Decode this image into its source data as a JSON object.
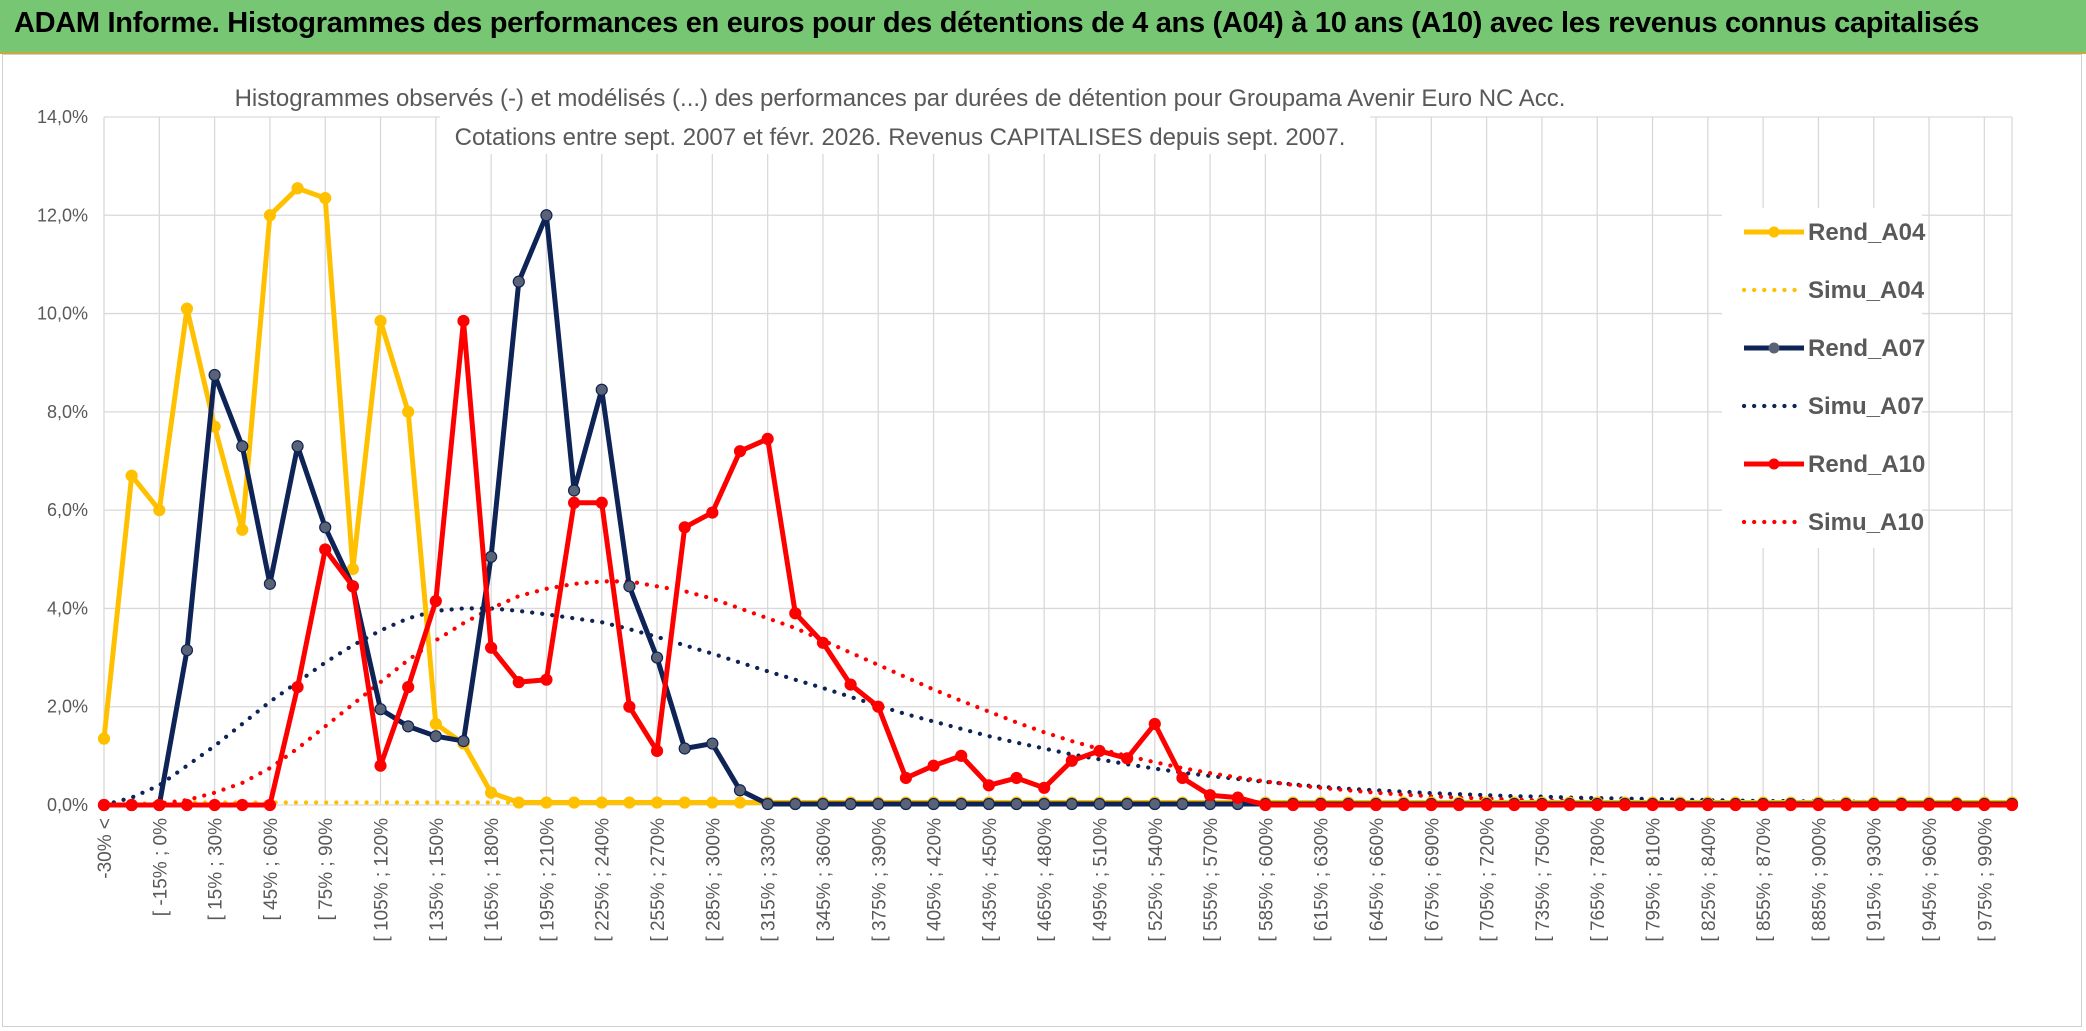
{
  "banner": {
    "title": "ADAM Informe. Histogrammes des performances en euros pour des détentions de 4 ans (A04) à 10 ans (A10) avec les revenus connus capitalisés"
  },
  "colors": {
    "A04": "#ffc000",
    "A07": "#0e2356",
    "A10": "#ff0000",
    "banner_bg": "#77c674",
    "grid": "#d9d9d9",
    "text": "#595959"
  },
  "chart_data": {
    "type": "line",
    "title_lines": [
      "Histogrammes observés (-) et modélisés (...) des performances par durées de détention pour Groupama Avenir Euro NC Acc.",
      "Cotations entre sept. 2007 et févr. 2026. Revenus CAPITALISES depuis sept. 2007."
    ],
    "xlabel": "",
    "ylabel": "",
    "ylim": [
      0,
      14
    ],
    "yticks": [
      0,
      2,
      4,
      6,
      8,
      10,
      12,
      14
    ],
    "ytick_labels": [
      "0,0%",
      "2,0%",
      "4,0%",
      "6,0%",
      "8,0%",
      "10,0%",
      "12,0%",
      "14,0%"
    ],
    "grid": true,
    "legend_position": "right",
    "x_labels": [
      "-30% <",
      "[ -15% ; 0%",
      "[ 15% ; 30%",
      "[ 45% ; 60%",
      "[ 75% ; 90%",
      "[ 105% ; 120%",
      "[ 135% ; 150%",
      "[ 165% ; 180%",
      "[ 195% ; 210%",
      "[ 225% ; 240%",
      "[ 255% ; 270%",
      "[ 285% ; 300%",
      "[ 315% ; 330%",
      "[ 345% ; 360%",
      "[ 375% ; 390%",
      "[ 405% ; 420%",
      "[ 435% ; 450%",
      "[ 465% ; 480%",
      "[ 495% ; 510%",
      "[ 525% ; 540%",
      "[ 555% ; 570%",
      "[ 585% ; 600%",
      "[ 615% ; 630%",
      "[ 645% ; 660%",
      "[ 675% ; 690%",
      "[ 705% ; 720%",
      "[ 735% ; 750%",
      "[ 765% ; 780%",
      "[ 795% ; 810%",
      "[ 825% ; 840%",
      "[ 855% ; 870%",
      "[ 885% ; 900%",
      "[ 915% ; 930%",
      "[ 945% ; 960%",
      "[ 975% ; 990%"
    ],
    "num_points": 70,
    "series": [
      {
        "name": "Rend_A04",
        "style": "solid",
        "markers": true,
        "color_key": "A04",
        "values": [
          1.35,
          6.7,
          6.0,
          10.1,
          7.7,
          5.6,
          12.0,
          12.55,
          12.35,
          4.8,
          9.85,
          8.0,
          1.65,
          1.25,
          0.25,
          0.05,
          0.05,
          0.05,
          0.05,
          0.05,
          0.05,
          0.05,
          0.05,
          0.05,
          0.05,
          0.05,
          0.05,
          0.05,
          0.05,
          0.05,
          0.05,
          0.05,
          0.05,
          0.05,
          0.05,
          0.05,
          0.05,
          0.05,
          0.05,
          0.05,
          0.05,
          0.05,
          0.05,
          0.05,
          0.05,
          0.05,
          0.05,
          0.05,
          0.05,
          0.05,
          0.05,
          0.05,
          0.05,
          0.05,
          0.05,
          0.05,
          0.05,
          0.05,
          0.05,
          0.05,
          0.05,
          0.05,
          0.05,
          0.05,
          0.05,
          0.05,
          0.05,
          0.05,
          0.05,
          0.05
        ]
      },
      {
        "name": "Simu_A04",
        "style": "dotted",
        "markers": false,
        "color_key": "A04",
        "values": [
          0.0,
          0.02,
          0.04,
          0.05,
          0.05,
          0.05,
          0.05,
          0.05,
          0.05,
          0.05,
          0.05,
          0.05,
          0.05,
          0.05,
          0.05,
          0.05,
          0.05,
          0.05,
          0.05,
          0.05,
          0.05,
          0.05,
          0.05,
          0.05,
          0.05,
          0.05,
          0.05,
          0.05,
          0.05,
          0.05,
          0.05,
          0.05,
          0.05,
          0.05,
          0.05,
          0.05,
          0.05,
          0.05,
          0.05,
          0.05,
          0.05,
          0.05,
          0.05,
          0.05,
          0.05,
          0.05,
          0.05,
          0.05,
          0.05,
          0.05,
          0.05,
          0.05,
          0.05,
          0.05,
          0.05,
          0.05,
          0.05,
          0.05,
          0.05,
          0.05,
          0.05,
          0.05,
          0.05,
          0.05,
          0.05,
          0.05,
          0.05,
          0.05,
          0.05,
          0.05
        ]
      },
      {
        "name": "Rend_A07",
        "style": "solid",
        "markers": true,
        "color_key": "A07",
        "values": [
          0.0,
          0.0,
          0.0,
          3.15,
          8.75,
          7.3,
          4.5,
          7.3,
          5.65,
          4.45,
          1.95,
          1.6,
          1.4,
          1.3,
          5.05,
          10.65,
          12.0,
          6.4,
          8.45,
          4.45,
          3.0,
          1.15,
          1.25,
          0.3,
          0.02,
          0.02,
          0.02,
          0.02,
          0.02,
          0.02,
          0.02,
          0.02,
          0.02,
          0.02,
          0.02,
          0.02,
          0.02,
          0.02,
          0.02,
          0.02,
          0.02,
          0.02,
          0.02,
          0.02,
          0.02,
          0.02,
          0.02,
          0.02,
          0.02,
          0.02,
          0.02,
          0.02,
          0.02,
          0.02,
          0.02,
          0.02,
          0.02,
          0.02,
          0.02,
          0.02,
          0.02,
          0.02,
          0.02,
          0.02,
          0.02,
          0.02,
          0.02,
          0.02,
          0.02,
          0.02
        ]
      },
      {
        "name": "Simu_A07",
        "style": "dotted",
        "markers": false,
        "color_key": "A07",
        "values": [
          0.0,
          0.15,
          0.4,
          0.8,
          1.2,
          1.65,
          2.1,
          2.5,
          2.9,
          3.25,
          3.55,
          3.8,
          3.95,
          4.0,
          4.0,
          3.95,
          3.88,
          3.8,
          3.72,
          3.58,
          3.42,
          3.25,
          3.08,
          2.9,
          2.72,
          2.55,
          2.38,
          2.2,
          2.02,
          1.85,
          1.7,
          1.55,
          1.4,
          1.27,
          1.15,
          1.03,
          0.93,
          0.83,
          0.74,
          0.66,
          0.59,
          0.53,
          0.47,
          0.42,
          0.37,
          0.33,
          0.3,
          0.27,
          0.24,
          0.22,
          0.2,
          0.18,
          0.17,
          0.15,
          0.14,
          0.13,
          0.12,
          0.11,
          0.1,
          0.09,
          0.08,
          0.08,
          0.07,
          0.07,
          0.06,
          0.06,
          0.05,
          0.05,
          0.05,
          0.04
        ]
      },
      {
        "name": "Rend_A10",
        "style": "solid",
        "markers": true,
        "color_key": "A10",
        "values": [
          0.0,
          0.0,
          0.0,
          0.0,
          0.0,
          0.0,
          0.0,
          2.4,
          5.2,
          4.45,
          0.8,
          2.4,
          4.15,
          9.85,
          3.2,
          2.5,
          2.55,
          6.15,
          6.15,
          2.0,
          1.1,
          5.65,
          5.95,
          7.2,
          7.45,
          3.9,
          3.3,
          2.45,
          2.0,
          0.55,
          0.8,
          1.0,
          0.4,
          0.55,
          0.35,
          0.9,
          1.1,
          0.95,
          1.65,
          0.55,
          0.2,
          0.15,
          0.0,
          0.0,
          0.0,
          0.0,
          0.0,
          0.0,
          0.0,
          0.0,
          0.0,
          0.0,
          0.0,
          0.0,
          0.0,
          0.0,
          0.0,
          0.0,
          0.0,
          0.0,
          0.0,
          0.0,
          0.0,
          0.0,
          0.0,
          0.0,
          0.0,
          0.0,
          0.0,
          0.0
        ]
      },
      {
        "name": "Simu_A10",
        "style": "dotted",
        "markers": false,
        "color_key": "A10",
        "values": [
          0.0,
          0.0,
          0.03,
          0.1,
          0.25,
          0.45,
          0.75,
          1.15,
          1.6,
          2.05,
          2.5,
          2.95,
          3.35,
          3.7,
          4.0,
          4.25,
          4.4,
          4.5,
          4.55,
          4.55,
          4.45,
          4.35,
          4.2,
          4.0,
          3.8,
          3.6,
          3.35,
          3.1,
          2.85,
          2.6,
          2.35,
          2.12,
          1.9,
          1.68,
          1.48,
          1.3,
          1.14,
          1.0,
          0.87,
          0.75,
          0.65,
          0.56,
          0.48,
          0.41,
          0.35,
          0.3,
          0.25,
          0.21,
          0.18,
          0.15,
          0.13,
          0.11,
          0.09,
          0.08,
          0.07,
          0.06,
          0.05,
          0.04,
          0.03,
          0.03,
          0.02,
          0.02,
          0.02,
          0.01,
          0.01,
          0.01,
          0.01,
          0.01,
          0.01,
          0.0
        ]
      }
    ]
  }
}
